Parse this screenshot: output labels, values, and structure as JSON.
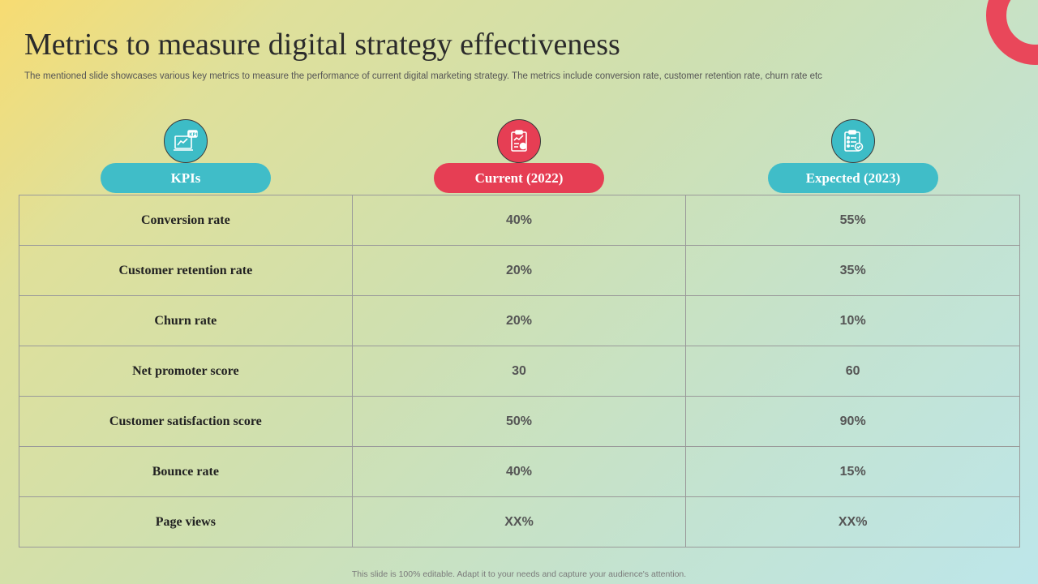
{
  "title": "Metrics to measure digital strategy effectiveness",
  "subtitle": "The mentioned slide showcases various key metrics to measure the performance of current digital marketing strategy. The metrics include conversion rate, customer retention rate, churn rate etc",
  "headers": {
    "kpi": {
      "label": "KPIs",
      "icon": "kpi-chart-icon"
    },
    "current": {
      "label": "Current (2022)",
      "icon": "clipboard-report-icon"
    },
    "expected": {
      "label": "Expected (2023)",
      "icon": "checklist-clipboard-icon"
    }
  },
  "rows": [
    {
      "kpi": "Conversion rate",
      "current": "40%",
      "expected": "55%"
    },
    {
      "kpi": "Customer retention rate",
      "current": "20%",
      "expected": "35%"
    },
    {
      "kpi": "Churn rate",
      "current": "20%",
      "expected": "10%"
    },
    {
      "kpi": "Net promoter score",
      "current": "30",
      "expected": "60"
    },
    {
      "kpi": "Customer satisfaction score",
      "current": "50%",
      "expected": "90%"
    },
    {
      "kpi": "Bounce rate",
      "current": "40%",
      "expected": "15%"
    },
    {
      "kpi": "Page views",
      "current": "XX%",
      "expected": "XX%"
    }
  ],
  "footer": "This slide is 100% editable. Adapt it to your needs and capture your audience's attention.",
  "colors": {
    "teal": "#40bdc8",
    "red": "#e63e54",
    "ring": "#e9475a"
  }
}
